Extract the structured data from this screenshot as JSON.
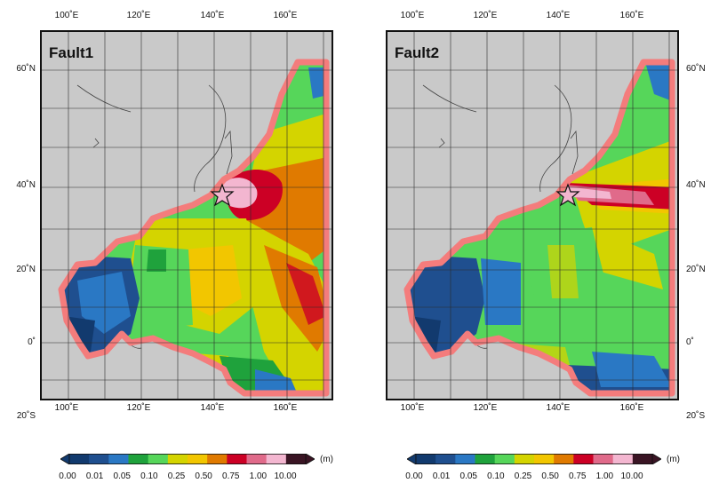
{
  "panels": [
    {
      "title": "Fault1"
    },
    {
      "title": "Fault2"
    }
  ],
  "axes": {
    "lon_labels": [
      "100˚E",
      "120˚E",
      "140˚E",
      "160˚E"
    ],
    "lat_labels": [
      "60˚N",
      "40˚N",
      "20˚N",
      "0˚",
      "20˚S"
    ]
  },
  "colorbar": {
    "unit": "(m)",
    "levels": [
      "0.00",
      "0.01",
      "0.05",
      "0.10",
      "0.25",
      "0.50",
      "0.75",
      "1.00",
      "10.00"
    ],
    "colors": [
      "#123a6e",
      "#1f4f8f",
      "#2a78c4",
      "#1fa23c",
      "#56d65a",
      "#d4d400",
      "#f2c600",
      "#e07a00",
      "#cc0025",
      "#e06a8a",
      "#f3b6d0",
      "#3a1524"
    ]
  },
  "colors": {
    "land": "#c9c9c9",
    "coast": "#444444",
    "domain_border": "#f47c7c",
    "grid": "#2b2b2b",
    "epicenter": "#f2b6cf"
  },
  "icons": {
    "epicenter": "star-icon",
    "colorbar_ends": "triangle-arrow-icon"
  }
}
